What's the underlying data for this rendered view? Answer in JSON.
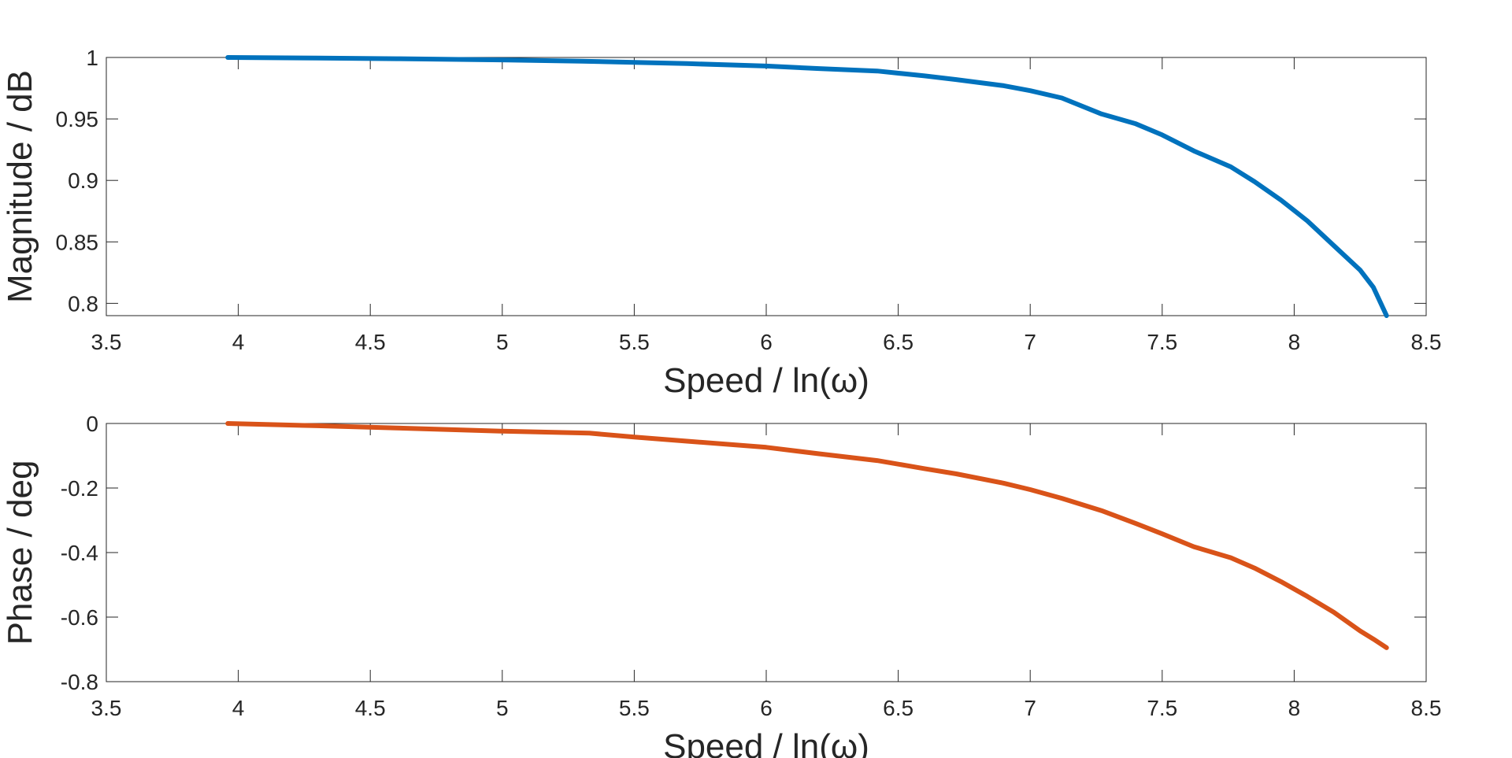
{
  "chart_data": [
    {
      "type": "line",
      "xlabel": "Speed / ln(ω)",
      "ylabel": "Magnitude / dB",
      "xlim": [
        3.5,
        8.5
      ],
      "ylim": [
        0.79,
        1.0
      ],
      "xticks": [
        "3.5",
        "4",
        "4.5",
        "5",
        "5.5",
        "6",
        "6.5",
        "7",
        "7.5",
        "8",
        "8.5"
      ],
      "yticks": [
        "0.8",
        "0.85",
        "0.9",
        "0.95",
        "1"
      ],
      "grid": false,
      "series": [
        {
          "color": "#0072BD",
          "x": [
            3.96,
            4.3,
            4.6,
            5.0,
            5.3,
            5.5,
            5.7,
            6.0,
            6.2,
            6.42,
            6.6,
            6.72,
            6.9,
            7.0,
            7.12,
            7.27,
            7.4,
            7.5,
            7.62,
            7.76,
            7.85,
            7.95,
            8.05,
            8.15,
            8.25,
            8.3,
            8.35
          ],
          "y": [
            1.0,
            0.9995,
            0.999,
            0.998,
            0.997,
            0.996,
            0.995,
            0.993,
            0.991,
            0.989,
            0.985,
            0.982,
            0.977,
            0.973,
            0.967,
            0.954,
            0.946,
            0.937,
            0.924,
            0.911,
            0.899,
            0.884,
            0.867,
            0.847,
            0.827,
            0.813,
            0.79
          ]
        }
      ]
    },
    {
      "type": "line",
      "xlabel": "Speed / ln(ω)",
      "ylabel": "Phase / deg",
      "xlim": [
        3.5,
        8.5
      ],
      "ylim": [
        -0.8,
        0
      ],
      "xticks": [
        "3.5",
        "4",
        "4.5",
        "5",
        "5.5",
        "6",
        "6.5",
        "7",
        "7.5",
        "8",
        "8.5"
      ],
      "yticks": [
        "-0.8",
        "-0.6",
        "-0.4",
        "-0.2",
        "0"
      ],
      "grid": false,
      "series": [
        {
          "color": "#D95319",
          "x": [
            3.96,
            4.3,
            4.6,
            5.0,
            5.33,
            5.5,
            5.7,
            6.0,
            6.2,
            6.42,
            6.6,
            6.72,
            6.9,
            7.0,
            7.12,
            7.27,
            7.4,
            7.5,
            7.62,
            7.76,
            7.85,
            7.95,
            8.05,
            8.15,
            8.25,
            8.3,
            8.35
          ],
          "y": [
            0.0,
            -0.007,
            -0.014,
            -0.024,
            -0.03,
            -0.042,
            -0.055,
            -0.074,
            -0.094,
            -0.115,
            -0.14,
            -0.156,
            -0.185,
            -0.205,
            -0.232,
            -0.27,
            -0.31,
            -0.342,
            -0.382,
            -0.416,
            -0.448,
            -0.49,
            -0.536,
            -0.585,
            -0.643,
            -0.668,
            -0.695
          ]
        }
      ]
    }
  ]
}
